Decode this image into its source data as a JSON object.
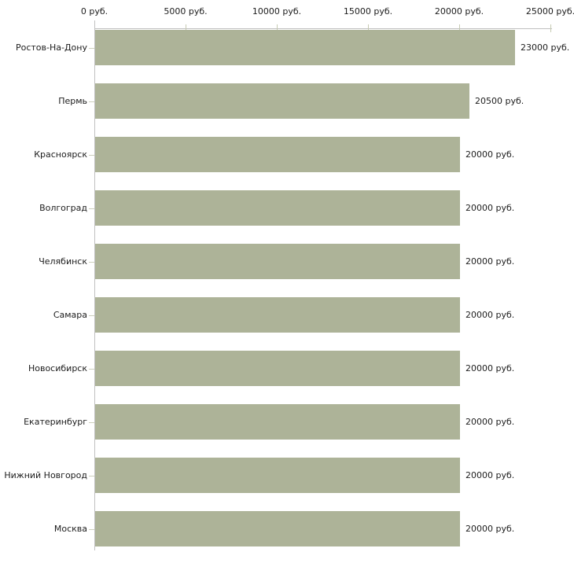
{
  "chart_data": {
    "type": "bar",
    "orientation": "horizontal",
    "title": "",
    "xlabel": "",
    "ylabel": "",
    "categories": [
      "Ростов-На-Дону",
      "Пермь",
      "Красноярск",
      "Волгоград",
      "Челябинск",
      "Самара",
      "Новосибирск",
      "Екатеринбург",
      "Нижний Новгород",
      "Москва"
    ],
    "values": [
      23000,
      20500,
      20000,
      20000,
      20000,
      20000,
      20000,
      20000,
      20000,
      20000
    ],
    "value_labels": [
      "23000 руб.",
      "20500 руб.",
      "20000 руб.",
      "20000 руб.",
      "20000 руб.",
      "20000 руб.",
      "20000 руб.",
      "20000 руб.",
      "20000 руб.",
      "20000 руб."
    ],
    "x_axis": {
      "position": "top",
      "min": 0,
      "max": 25000,
      "ticks": [
        0,
        5000,
        10000,
        15000,
        20000,
        25000
      ],
      "tick_labels": [
        "0 руб.",
        "5000 руб.",
        "10000 руб.",
        "15000 руб.",
        "20000 руб.",
        "25000 руб."
      ]
    },
    "legend": "none",
    "grid": false,
    "colors": {
      "bar": "#adb398",
      "axis_line": "#c0c0c0",
      "axis_tick": "#c6cab2",
      "category_tick": "#cdd0bd",
      "text": "#1c1c1c",
      "background": "#ffffff"
    }
  }
}
